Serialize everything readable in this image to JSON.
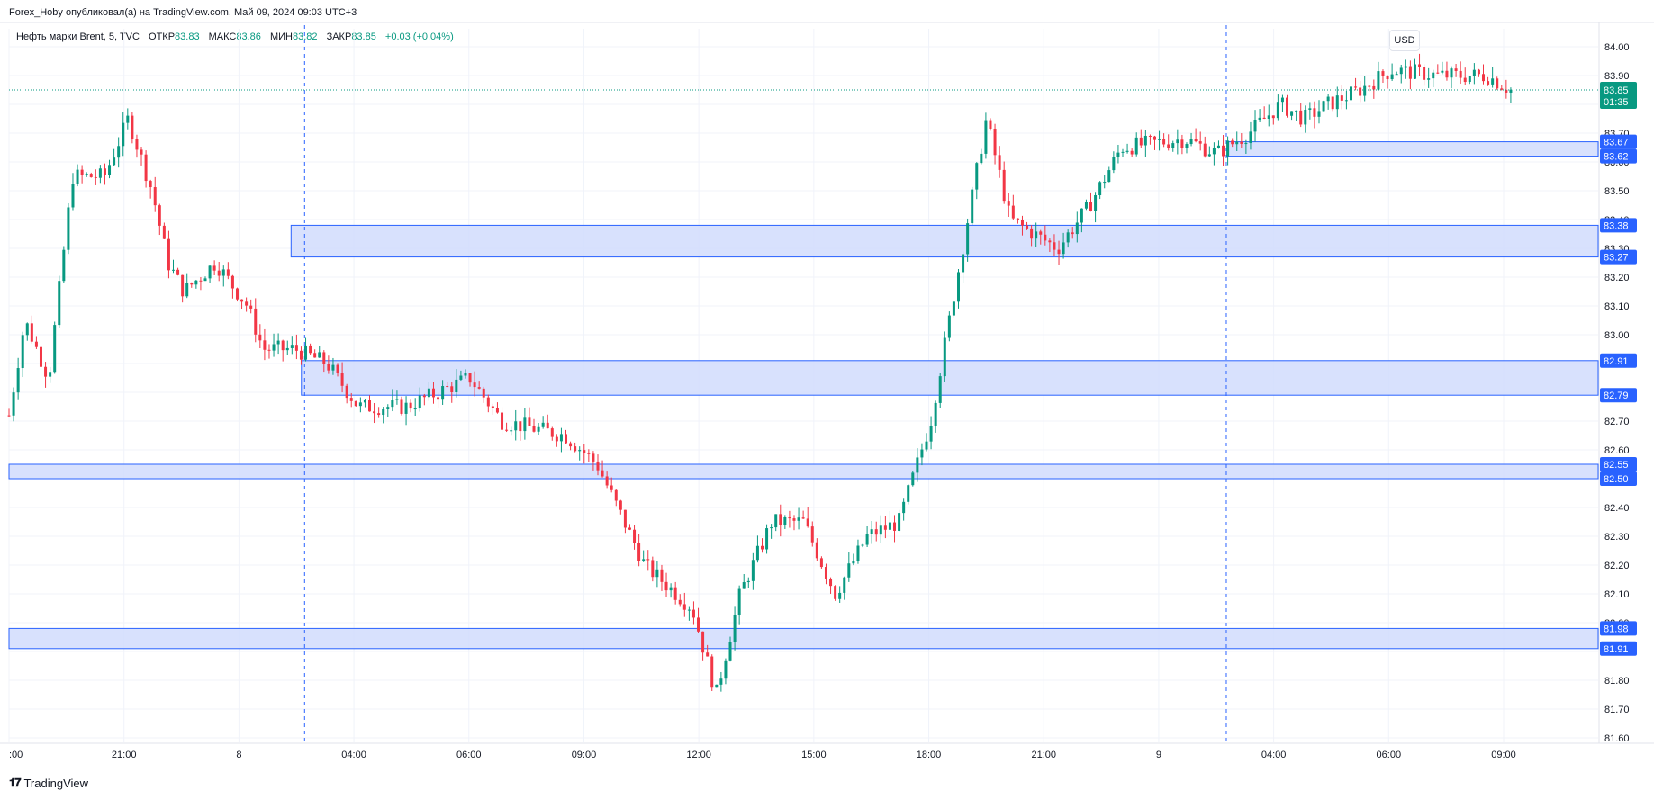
{
  "header": {
    "publisher_line": "Forex_Hoby опубликовал(а) на TradingView.com, Май 09, 2024 09:03 UTC+3"
  },
  "legend": {
    "symbol": "Нефть марки Brent, 5, TVC",
    "open_label": "ОТКР",
    "open_value": "83.83",
    "high_label": "МАКС",
    "high_value": "83.86",
    "low_label": "МИН",
    "low_value": "83.82",
    "close_label": "ЗАКР",
    "close_value": "83.85",
    "change": "+0.03 (+0.04%)"
  },
  "currency_button": "USD",
  "footer": {
    "brand": "TradingView"
  },
  "colors": {
    "up": "#089981",
    "down": "#f23645",
    "zone_fill": "#d1dcfd",
    "zone_line": "#2962ff",
    "grid": "#f0f3fa",
    "axis_text": "#131722",
    "current_price_bg": "#089981"
  },
  "chart_data": {
    "type": "candlestick",
    "interval": "5",
    "ylim": [
      81.6,
      84.0
    ],
    "y_ticks": [
      "81.60",
      "81.70",
      "81.80",
      "81.90",
      "82.00",
      "82.10",
      "82.20",
      "82.30",
      "82.40",
      "82.50",
      "82.60",
      "82.70",
      "82.80",
      "82.90",
      "83.00",
      "83.10",
      "83.20",
      "83.30",
      "83.40",
      "83.50",
      "83.60",
      "83.70",
      "83.80",
      "83.90",
      "84.00"
    ],
    "x_ticks": [
      ":00",
      "21:00",
      "8",
      "04:00",
      "06:00",
      "09:00",
      "12:00",
      "15:00",
      "18:00",
      "21:00",
      "9",
      "04:00",
      "06:00",
      "09:00"
    ],
    "current_price": {
      "price": "83.85",
      "countdown": "01:35",
      "value": 83.85
    },
    "zones": [
      {
        "top_label": "83.67",
        "bottom_label": "83.62",
        "top": 83.67,
        "bottom": 83.62,
        "start": "9 02:00"
      },
      {
        "top_label": "83.38",
        "bottom_label": "83.27",
        "top": 83.38,
        "bottom": 83.27,
        "start": "8 01:45"
      },
      {
        "top_label": "82.91",
        "bottom_label": "82.79",
        "top": 82.91,
        "bottom": 82.79,
        "start": "8 02:00"
      },
      {
        "top_label": "82.55",
        "bottom_label": "82.50",
        "top": 82.55,
        "bottom": 82.5,
        "start": "left edge"
      },
      {
        "top_label": "81.98",
        "bottom_label": "81.91",
        "top": 81.98,
        "bottom": 81.91,
        "start": "left edge"
      }
    ],
    "session_separators": [
      "8 02:00",
      "9 02:00"
    ],
    "price_path": [
      {
        "x": 0.0,
        "y": 82.72
      },
      {
        "x": 0.01,
        "y": 83.05
      },
      {
        "x": 0.025,
        "y": 82.85
      },
      {
        "x": 0.04,
        "y": 83.55
      },
      {
        "x": 0.06,
        "y": 83.55
      },
      {
        "x": 0.075,
        "y": 83.75
      },
      {
        "x": 0.09,
        "y": 83.5
      },
      {
        "x": 0.1,
        "y": 83.25
      },
      {
        "x": 0.11,
        "y": 83.15
      },
      {
        "x": 0.13,
        "y": 83.25
      },
      {
        "x": 0.15,
        "y": 83.1
      },
      {
        "x": 0.16,
        "y": 82.95
      },
      {
        "x": 0.18,
        "y": 82.95
      },
      {
        "x": 0.2,
        "y": 82.9
      },
      {
        "x": 0.22,
        "y": 82.75
      },
      {
        "x": 0.25,
        "y": 82.75
      },
      {
        "x": 0.29,
        "y": 82.85
      },
      {
        "x": 0.31,
        "y": 82.7
      },
      {
        "x": 0.35,
        "y": 82.65
      },
      {
        "x": 0.37,
        "y": 82.55
      },
      {
        "x": 0.4,
        "y": 82.2
      },
      {
        "x": 0.43,
        "y": 82.05
      },
      {
        "x": 0.445,
        "y": 81.75
      },
      {
        "x": 0.46,
        "y": 82.1
      },
      {
        "x": 0.48,
        "y": 82.35
      },
      {
        "x": 0.5,
        "y": 82.35
      },
      {
        "x": 0.52,
        "y": 82.1
      },
      {
        "x": 0.54,
        "y": 82.3
      },
      {
        "x": 0.56,
        "y": 82.35
      },
      {
        "x": 0.58,
        "y": 82.7
      },
      {
        "x": 0.6,
        "y": 83.3
      },
      {
        "x": 0.615,
        "y": 83.75
      },
      {
        "x": 0.63,
        "y": 83.4
      },
      {
        "x": 0.66,
        "y": 83.3
      },
      {
        "x": 0.68,
        "y": 83.45
      },
      {
        "x": 0.7,
        "y": 83.65
      },
      {
        "x": 0.74,
        "y": 83.68
      },
      {
        "x": 0.76,
        "y": 83.63
      },
      {
        "x": 0.78,
        "y": 83.7
      },
      {
        "x": 0.8,
        "y": 83.8
      },
      {
        "x": 0.815,
        "y": 83.75
      },
      {
        "x": 0.83,
        "y": 83.8
      },
      {
        "x": 0.85,
        "y": 83.85
      },
      {
        "x": 0.87,
        "y": 83.92
      },
      {
        "x": 0.9,
        "y": 83.9
      },
      {
        "x": 0.93,
        "y": 83.9
      },
      {
        "x": 0.945,
        "y": 83.85
      }
    ]
  }
}
